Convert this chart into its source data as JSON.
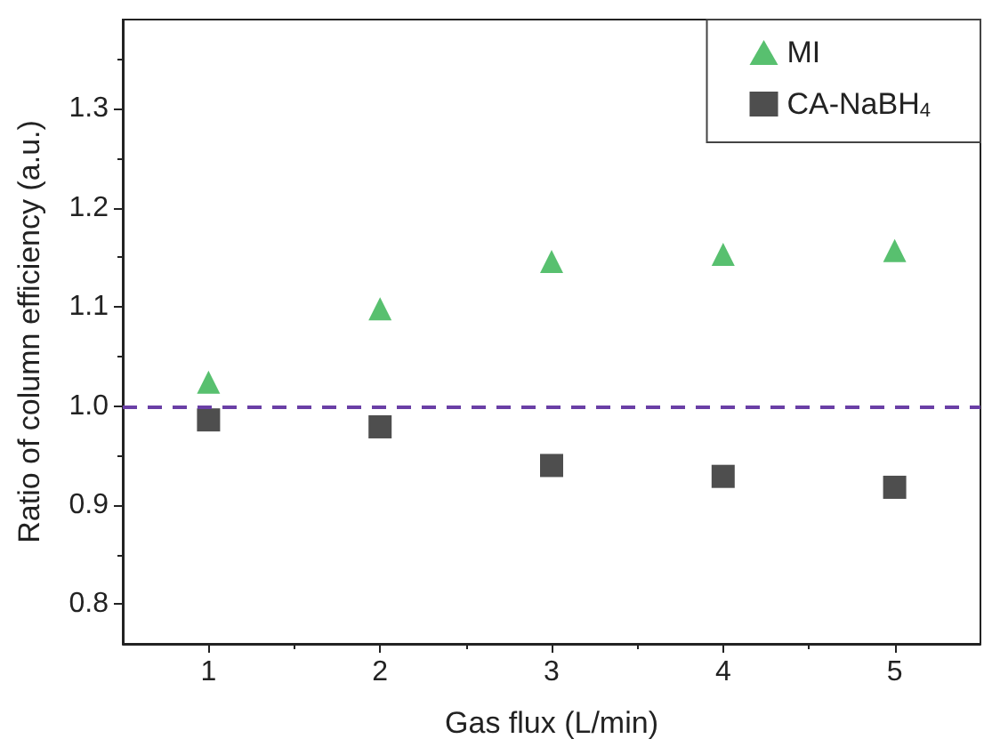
{
  "chart_data": {
    "type": "scatter",
    "xlabel": "Gas flux (L/min)",
    "ylabel": "Ratio of column efficiency (a.u.)",
    "x": [
      1,
      2,
      3,
      4,
      5
    ],
    "series": [
      {
        "name": "MI",
        "color": "#2eb04b",
        "marker": "triangle",
        "values": [
          1.024,
          1.098,
          1.146,
          1.153,
          1.157
        ]
      },
      {
        "name": "CA-NaBH$_{4}$",
        "color": "#222222",
        "marker": "square",
        "values": [
          0.986,
          0.979,
          0.94,
          0.929,
          0.918
        ]
      }
    ],
    "xlim": [
      0.5,
      5.5
    ],
    "xticks": [
      1,
      2,
      3,
      4,
      5
    ],
    "ylim": [
      0.76,
      1.39
    ],
    "yticks": [
      {
        "value": 0.8,
        "label": "0.8"
      },
      {
        "value": 0.9,
        "label": "0.9"
      },
      {
        "value": 1.0,
        "label": "1.0"
      },
      {
        "value": 1.1,
        "label": "1.1"
      },
      {
        "value": 1.2,
        "label": "1.2"
      },
      {
        "value": 1.3,
        "label": "1.3"
      }
    ],
    "ref_lines": [
      {
        "axis": "y",
        "value": 1.0,
        "color": "#6a3fa6",
        "line_style": "dashed"
      }
    ],
    "grid": false,
    "legend": "top right"
  }
}
